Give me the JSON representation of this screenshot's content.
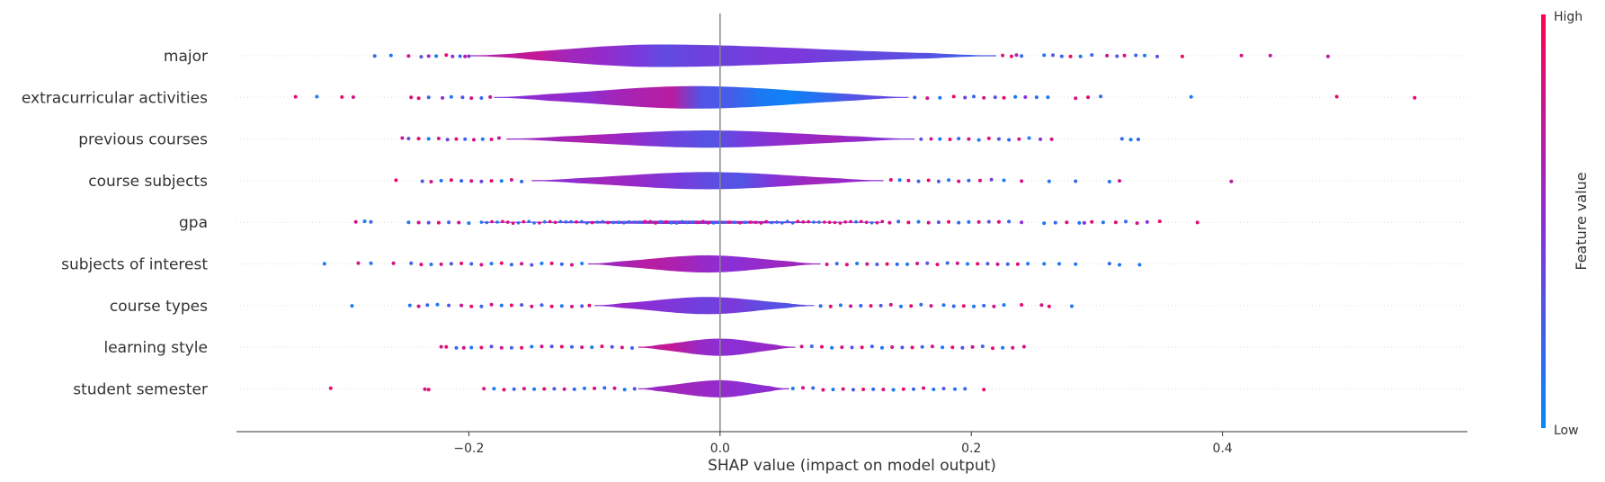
{
  "chart_data": {
    "type": "violin-beeswarm",
    "xlabel": "SHAP value (impact on model output)",
    "xlim": [
      -0.385,
      0.595
    ],
    "x_ticks": [
      -0.2,
      0.0,
      0.2,
      0.4
    ],
    "x_tick_labels": [
      "−0.2",
      "0.0",
      "0.2",
      "0.4"
    ],
    "grid": false,
    "colorbar": {
      "title": "Feature value",
      "high_label": "High",
      "low_label": "Low",
      "high_color": "#ff0051",
      "low_color": "#008bfb"
    },
    "features": [
      {
        "name": "major",
        "violin_range": [
          -0.2,
          0.22
        ],
        "violin_peak": -0.05,
        "violin_halfwidth": 0.55,
        "points_x": [
          -0.275,
          -0.262,
          -0.248,
          -0.238,
          -0.232,
          -0.226,
          -0.218,
          -0.213,
          -0.207,
          -0.203,
          -0.2,
          0.225,
          0.232,
          0.236,
          0.24,
          0.258,
          0.265,
          0.272,
          0.279,
          0.287,
          0.296,
          0.308,
          0.316,
          0.322,
          0.331,
          0.338,
          0.348,
          0.368,
          0.415,
          0.438,
          0.484
        ],
        "points_v": [
          0.2,
          0.1,
          0.8,
          0.3,
          0.6,
          0.1,
          0.9,
          0.5,
          0.2,
          0.7,
          0.4,
          0.8,
          0.9,
          0.6,
          0.2,
          0.1,
          0.3,
          0.2,
          0.9,
          0.1,
          0.2,
          0.8,
          0.3,
          0.9,
          0.2,
          0.1,
          0.3,
          0.9,
          0.8,
          0.7,
          0.7
        ],
        "colors": [
          0.55,
          0.7,
          0.75,
          0.6,
          0.55,
          0.45,
          0.35,
          0.4,
          0.4,
          0.45,
          0.45,
          0.4,
          0.35,
          0.35,
          0.3,
          0.25,
          0.3
        ]
      },
      {
        "name": "extracurricular activities",
        "violin_range": [
          -0.18,
          0.15
        ],
        "violin_peak": -0.02,
        "violin_halfwidth": 0.55,
        "points_x": [
          -0.338,
          -0.321,
          -0.301,
          -0.292,
          -0.246,
          -0.24,
          -0.232,
          -0.221,
          -0.214,
          -0.205,
          -0.198,
          -0.19,
          -0.183,
          0.155,
          0.165,
          0.175,
          0.186,
          0.195,
          0.202,
          0.21,
          0.219,
          0.226,
          0.235,
          0.243,
          0.252,
          0.261,
          0.283,
          0.293,
          0.303,
          0.375,
          0.491,
          0.553
        ],
        "points_v": [
          0.9,
          0.1,
          0.9,
          0.8,
          0.8,
          0.9,
          0.2,
          0.5,
          0.1,
          0.3,
          0.8,
          0.2,
          0.7,
          0.2,
          0.8,
          0.1,
          0.9,
          0.4,
          0.2,
          0.8,
          0.3,
          0.9,
          0.1,
          0.5,
          0.2,
          0.1,
          0.8,
          0.9,
          0.2,
          0.1,
          0.9,
          0.9
        ],
        "colors": [
          0.45,
          0.5,
          0.55,
          0.5,
          0.6,
          0.65,
          0.7,
          0.3,
          0.25,
          0.1,
          0.05,
          0.15,
          0.3,
          0.35,
          0.4
        ]
      },
      {
        "name": "previous courses",
        "violin_range": [
          -0.17,
          0.155
        ],
        "violin_peak": -0.01,
        "violin_halfwidth": 0.42,
        "points_x": [
          -0.253,
          -0.248,
          -0.24,
          -0.232,
          -0.224,
          -0.217,
          -0.21,
          -0.203,
          -0.196,
          -0.189,
          -0.182,
          -0.176,
          0.16,
          0.168,
          0.175,
          0.183,
          0.19,
          0.198,
          0.206,
          0.214,
          0.222,
          0.23,
          0.238,
          0.246,
          0.255,
          0.264,
          0.32,
          0.327,
          0.333
        ],
        "points_v": [
          0.8,
          0.3,
          0.9,
          0.1,
          0.8,
          0.4,
          0.9,
          0.2,
          0.8,
          0.1,
          0.9,
          0.7,
          0.3,
          0.8,
          0.1,
          0.9,
          0.2,
          0.8,
          0.1,
          0.9,
          0.3,
          0.2,
          0.8,
          0.1,
          0.5,
          0.8,
          0.2,
          0.1,
          0.2
        ],
        "colors": [
          0.55,
          0.6,
          0.65,
          0.55,
          0.4,
          0.3,
          0.45,
          0.55,
          0.6,
          0.5,
          0.45
        ]
      },
      {
        "name": "course subjects",
        "violin_range": [
          -0.15,
          0.13
        ],
        "violin_peak": -0.01,
        "violin_halfwidth": 0.42,
        "points_x": [
          -0.258,
          -0.237,
          -0.23,
          -0.222,
          -0.214,
          -0.206,
          -0.198,
          -0.19,
          -0.182,
          -0.174,
          -0.166,
          -0.158,
          0.136,
          0.143,
          0.15,
          0.158,
          0.166,
          0.174,
          0.182,
          0.19,
          0.198,
          0.207,
          0.216,
          0.226,
          0.24,
          0.262,
          0.283,
          0.31,
          0.318,
          0.407
        ],
        "points_v": [
          0.9,
          0.3,
          0.8,
          0.1,
          0.9,
          0.2,
          0.8,
          0.4,
          0.9,
          0.1,
          0.8,
          0.2,
          0.9,
          0.1,
          0.8,
          0.2,
          0.9,
          0.3,
          0.1,
          0.8,
          0.2,
          0.9,
          0.4,
          0.1,
          0.8,
          0.1,
          0.2,
          0.1,
          0.8,
          0.7
        ],
        "colors": [
          0.55,
          0.5,
          0.6,
          0.55,
          0.45,
          0.35,
          0.3,
          0.5,
          0.6,
          0.55,
          0.5
        ]
      },
      {
        "name": "gpa",
        "violin_range": [
          -0.19,
          0.13
        ],
        "violin_peak": -0.03,
        "violin_halfwidth": 0.08,
        "points_x": [
          -0.29,
          -0.283,
          -0.278,
          -0.248,
          -0.24,
          -0.232,
          -0.224,
          -0.216,
          -0.208,
          -0.2,
          0.135,
          0.142,
          0.15,
          0.158,
          0.166,
          0.174,
          0.182,
          0.19,
          0.198,
          0.206,
          0.214,
          0.222,
          0.23,
          0.24,
          0.258,
          0.267,
          0.276,
          0.286,
          0.29,
          0.296,
          0.305,
          0.315,
          0.323,
          0.332,
          0.34,
          0.35,
          0.38
        ],
        "points_v": [
          0.8,
          0.1,
          0.2,
          0.1,
          0.8,
          0.3,
          0.9,
          0.2,
          0.8,
          0.1,
          0.8,
          0.2,
          0.9,
          0.1,
          0.8,
          0.3,
          0.9,
          0.2,
          0.1,
          0.8,
          0.3,
          0.9,
          0.2,
          0.5,
          0.1,
          0.2,
          0.9,
          0.1,
          0.5,
          0.9,
          0.1,
          0.9,
          0.2,
          0.8,
          0.5,
          0.9,
          0.9
        ],
        "colors": [
          0.5,
          0.5,
          0.5,
          0.5,
          0.5,
          0.5,
          0.5
        ]
      },
      {
        "name": "subjects of interest",
        "violin_range": [
          -0.105,
          0.08
        ],
        "violin_peak": -0.01,
        "violin_halfwidth": 0.42,
        "points_x": [
          -0.315,
          -0.288,
          -0.278,
          -0.26,
          -0.246,
          -0.238,
          -0.23,
          -0.222,
          -0.214,
          -0.206,
          -0.198,
          -0.19,
          -0.182,
          -0.174,
          -0.166,
          -0.158,
          -0.15,
          -0.142,
          -0.134,
          -0.126,
          -0.118,
          -0.11,
          0.085,
          0.093,
          0.101,
          0.109,
          0.117,
          0.125,
          0.133,
          0.141,
          0.149,
          0.157,
          0.165,
          0.173,
          0.181,
          0.189,
          0.197,
          0.205,
          0.213,
          0.221,
          0.229,
          0.237,
          0.245,
          0.258,
          0.27,
          0.283,
          0.31,
          0.318,
          0.334
        ],
        "points_v": [
          0.1,
          0.8,
          0.1,
          0.8,
          0.2,
          0.9,
          0.1,
          0.8,
          0.3,
          0.9,
          0.2,
          0.8,
          0.1,
          0.9,
          0.2,
          0.8,
          0.3,
          0.1,
          0.9,
          0.2,
          0.8,
          0.1,
          0.8,
          0.2,
          0.9,
          0.1,
          0.8,
          0.3,
          0.9,
          0.2,
          0.1,
          0.8,
          0.3,
          0.9,
          0.2,
          0.8,
          0.1,
          0.9,
          0.3,
          0.8,
          0.2,
          0.9,
          0.1,
          0.1,
          0.1,
          0.1,
          0.2,
          0.1,
          0.1
        ],
        "colors": [
          0.55,
          0.6,
          0.7,
          0.65,
          0.55,
          0.5,
          0.55,
          0.6,
          0.55
        ]
      },
      {
        "name": "course types",
        "violin_range": [
          -0.1,
          0.075
        ],
        "violin_peak": -0.01,
        "violin_halfwidth": 0.42,
        "points_x": [
          -0.293,
          -0.247,
          -0.24,
          -0.233,
          -0.225,
          -0.216,
          -0.206,
          -0.198,
          -0.19,
          -0.182,
          -0.174,
          -0.166,
          -0.158,
          -0.15,
          -0.142,
          -0.134,
          -0.126,
          -0.118,
          -0.11,
          -0.104,
          0.08,
          0.088,
          0.096,
          0.104,
          0.112,
          0.12,
          0.128,
          0.136,
          0.144,
          0.152,
          0.16,
          0.168,
          0.178,
          0.186,
          0.194,
          0.202,
          0.21,
          0.218,
          0.226,
          0.24,
          0.256,
          0.262,
          0.28
        ],
        "points_v": [
          0.1,
          0.1,
          0.8,
          0.2,
          0.1,
          0.3,
          0.8,
          0.9,
          0.2,
          0.8,
          0.1,
          0.9,
          0.3,
          0.8,
          0.2,
          0.9,
          0.1,
          0.8,
          0.3,
          0.9,
          0.2,
          0.9,
          0.1,
          0.8,
          0.2,
          0.9,
          0.3,
          0.8,
          0.1,
          0.9,
          0.2,
          0.8,
          0.1,
          0.2,
          0.9,
          0.1,
          0.2,
          0.8,
          0.1,
          0.9,
          0.8,
          0.9,
          0.1
        ],
        "colors": [
          0.5,
          0.55,
          0.5,
          0.45,
          0.4,
          0.45,
          0.35,
          0.3,
          0.35
        ]
      },
      {
        "name": "learning style",
        "violin_range": [
          -0.065,
          0.06
        ],
        "violin_peak": 0.0,
        "violin_halfwidth": 0.42,
        "points_x": [
          -0.222,
          -0.218,
          -0.21,
          -0.204,
          -0.198,
          -0.19,
          -0.182,
          -0.174,
          -0.166,
          -0.158,
          -0.15,
          -0.142,
          -0.134,
          -0.126,
          -0.118,
          -0.11,
          -0.102,
          -0.094,
          -0.086,
          -0.078,
          -0.07,
          0.065,
          0.073,
          0.081,
          0.089,
          0.097,
          0.105,
          0.113,
          0.121,
          0.129,
          0.137,
          0.145,
          0.153,
          0.161,
          0.169,
          0.177,
          0.185,
          0.193,
          0.201,
          0.209,
          0.217,
          0.225,
          0.233,
          0.242
        ],
        "points_v": [
          0.8,
          0.9,
          0.2,
          0.8,
          0.1,
          0.9,
          0.3,
          0.8,
          0.2,
          0.9,
          0.1,
          0.8,
          0.3,
          0.9,
          0.2,
          0.8,
          0.1,
          0.9,
          0.3,
          0.8,
          0.2,
          0.8,
          0.2,
          0.9,
          0.1,
          0.8,
          0.3,
          0.9,
          0.2,
          0.1,
          0.8,
          0.3,
          0.9,
          0.2,
          0.8,
          0.1,
          0.9,
          0.3,
          0.8,
          0.2,
          0.9,
          0.1,
          0.8,
          0.8
        ],
        "colors": [
          0.7,
          0.75,
          0.55,
          0.5,
          0.55,
          0.6
        ]
      },
      {
        "name": "student semester",
        "violin_range": [
          -0.065,
          0.055
        ],
        "violin_peak": 0.0,
        "violin_halfwidth": 0.42,
        "points_x": [
          -0.31,
          -0.235,
          -0.232,
          -0.188,
          -0.18,
          -0.172,
          -0.164,
          -0.156,
          -0.148,
          -0.14,
          -0.132,
          -0.124,
          -0.116,
          -0.108,
          -0.1,
          -0.092,
          -0.084,
          -0.076,
          -0.068,
          0.058,
          0.066,
          0.074,
          0.082,
          0.09,
          0.098,
          0.106,
          0.114,
          0.122,
          0.13,
          0.138,
          0.146,
          0.154,
          0.162,
          0.17,
          0.178,
          0.187,
          0.195,
          0.21
        ],
        "points_v": [
          0.9,
          0.8,
          0.9,
          0.8,
          0.1,
          0.9,
          0.2,
          0.8,
          0.1,
          0.9,
          0.3,
          0.8,
          0.2,
          0.1,
          0.9,
          0.2,
          0.8,
          0.1,
          0.3,
          0.1,
          0.8,
          0.2,
          0.9,
          0.1,
          0.8,
          0.3,
          0.9,
          0.2,
          0.8,
          0.1,
          0.9,
          0.2,
          0.8,
          0.1,
          0.3,
          0.1,
          0.2,
          0.9
        ],
        "colors": [
          0.55,
          0.6,
          0.55,
          0.5,
          0.55
        ]
      }
    ]
  }
}
